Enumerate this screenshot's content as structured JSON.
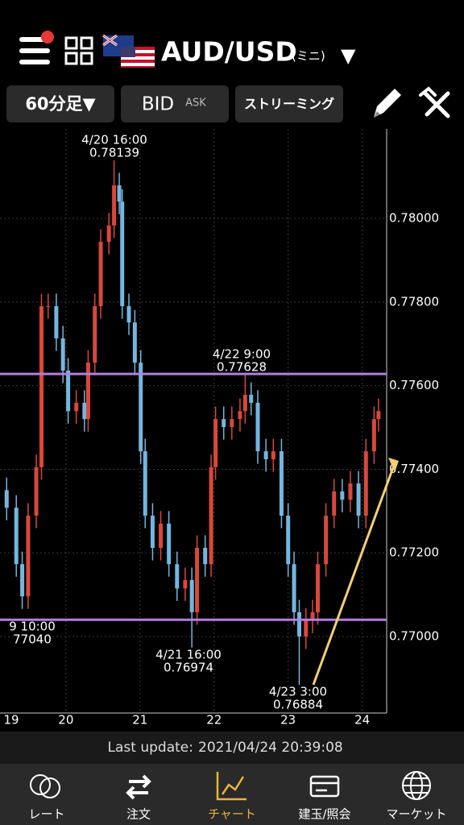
{
  "header": {
    "pair": "AUD/USD",
    "mini": "(ミニ)",
    "dropdown": "▼"
  },
  "toolbar": {
    "timeframe": "60分足▼",
    "bid": "BID",
    "ask": "ASK",
    "mode": "ストリーミング"
  },
  "chart_data": {
    "type": "candlestick",
    "x": [
      19.2,
      19.33,
      19.41,
      19.49,
      19.6,
      19.67,
      19.76,
      19.87,
      19.96,
      20.03,
      20.14,
      20.25,
      20.3,
      20.39,
      20.47,
      20.58,
      20.65,
      20.72,
      20.76,
      20.85,
      20.93,
      21.01,
      21.07,
      21.17,
      21.28,
      21.39,
      21.5,
      21.61,
      21.7,
      21.77,
      21.88,
      21.96,
      22.02,
      22.13,
      22.24,
      22.35,
      22.42,
      22.5,
      22.59,
      22.7,
      22.8,
      22.91,
      23.0,
      23.08,
      23.15,
      23.24,
      23.33,
      23.4,
      23.51,
      23.62,
      23.73,
      23.84,
      23.95,
      24.05,
      24.16,
      24.22
    ],
    "open": [
      0.7735,
      0.77308,
      0.77173,
      0.77096,
      0.77289,
      0.77405,
      0.7779,
      0.7779,
      0.77713,
      0.77636,
      0.77539,
      0.77559,
      0.7752,
      0.77655,
      0.7779,
      0.77944,
      0.77983,
      0.78079,
      0.7804,
      0.7779,
      0.77751,
      0.77655,
      0.77443,
      0.77289,
      0.77212,
      0.7727,
      0.77173,
      0.77115,
      0.77135,
      0.77058,
      0.77212,
      0.77173,
      0.77405,
      0.7752,
      0.77501,
      0.7752,
      0.77539,
      0.77578,
      0.77559,
      0.77443,
      0.77424,
      0.77443,
      0.77289,
      0.77173,
      0.77058,
      0.77,
      0.77038,
      0.77058,
      0.77173,
      0.77289,
      0.77347,
      0.77327,
      0.77366,
      0.77289,
      0.77443,
      0.7752
    ],
    "high": [
      0.7738,
      0.77338,
      0.77203,
      0.77319,
      0.77435,
      0.7782,
      0.7782,
      0.7782,
      0.77743,
      0.77666,
      0.77589,
      0.77589,
      0.77685,
      0.7782,
      0.77974,
      0.78013,
      0.78139,
      0.78109,
      0.7807,
      0.7782,
      0.77781,
      0.77685,
      0.77473,
      0.77319,
      0.773,
      0.773,
      0.77203,
      0.77165,
      0.77165,
      0.77242,
      0.77242,
      0.77435,
      0.7755,
      0.7755,
      0.7755,
      0.77569,
      0.77628,
      0.77608,
      0.77589,
      0.77473,
      0.77473,
      0.77473,
      0.77319,
      0.77203,
      0.77088,
      0.77068,
      0.77088,
      0.77203,
      0.77319,
      0.77377,
      0.77377,
      0.77396,
      0.77396,
      0.77473,
      0.7755,
      0.77569
    ],
    "low": [
      0.77278,
      0.77143,
      0.77066,
      0.77066,
      0.77259,
      0.77375,
      0.7776,
      0.77683,
      0.77606,
      0.77509,
      0.77509,
      0.7749,
      0.7749,
      0.77625,
      0.7776,
      0.77914,
      0.77953,
      0.7801,
      0.7776,
      0.77721,
      0.77625,
      0.77413,
      0.77259,
      0.77182,
      0.77182,
      0.77143,
      0.77085,
      0.77085,
      0.76974,
      0.77028,
      0.77143,
      0.77143,
      0.77375,
      0.77471,
      0.77471,
      0.7749,
      0.77509,
      0.77529,
      0.77413,
      0.77394,
      0.77394,
      0.77259,
      0.77143,
      0.77028,
      0.76884,
      0.7697,
      0.77008,
      0.77028,
      0.77143,
      0.77259,
      0.77297,
      0.77297,
      0.77259,
      0.77259,
      0.77413,
      0.7749
    ],
    "close": [
      0.77308,
      0.77173,
      0.77096,
      0.77289,
      0.77405,
      0.7779,
      0.7779,
      0.77713,
      0.77636,
      0.77539,
      0.77559,
      0.7752,
      0.77655,
      0.7779,
      0.77944,
      0.77983,
      0.78079,
      0.7804,
      0.7779,
      0.77751,
      0.77655,
      0.77443,
      0.77289,
      0.77212,
      0.7727,
      0.77173,
      0.77115,
      0.77135,
      0.77058,
      0.77212,
      0.77173,
      0.77405,
      0.7752,
      0.77501,
      0.7752,
      0.77539,
      0.77578,
      0.77559,
      0.77443,
      0.77424,
      0.77443,
      0.77289,
      0.77173,
      0.77058,
      0.77,
      0.77038,
      0.77058,
      0.77173,
      0.77289,
      0.77347,
      0.77327,
      0.77366,
      0.77289,
      0.77443,
      0.7752,
      0.77539
    ],
    "up_color": "#d9483b",
    "down_color": "#74b6de",
    "xlim": [
      19.11,
      24.33
    ],
    "xticks": [
      19,
      20,
      21,
      22,
      23,
      24
    ],
    "ylim": [
      0.76817,
      0.78214
    ],
    "yticks": [
      {
        "value": 0.77,
        "label": "0.77000"
      },
      {
        "value": 0.772,
        "label": "0.77200"
      },
      {
        "value": 0.774,
        "label": "0.77400"
      },
      {
        "value": 0.776,
        "label": "0.77600"
      },
      {
        "value": 0.778,
        "label": "0.77800"
      },
      {
        "value": 0.78,
        "label": "0.78000"
      }
    ],
    "grid": true,
    "hlines": [
      {
        "value": 0.77628,
        "color": "#b27ee0"
      },
      {
        "value": 0.7704,
        "color": "#b27ee0"
      }
    ],
    "annotations": [
      {
        "time": "4/20 16:00",
        "price": "0.78139"
      },
      {
        "time": "4/22 9:00",
        "price": "0.77628"
      },
      {
        "time": "9 10:00",
        "price": "77040"
      },
      {
        "time": "4/21 16:00",
        "price": "0.76974"
      },
      {
        "time": "4/23 3:00",
        "price": "0.76884"
      }
    ]
  },
  "footer": {
    "label": "Last update:",
    "time": "2021/04/24 20:39:08"
  },
  "tabs": [
    "レート",
    "注文",
    "チャート",
    "建玉/照会",
    "マーケット"
  ]
}
